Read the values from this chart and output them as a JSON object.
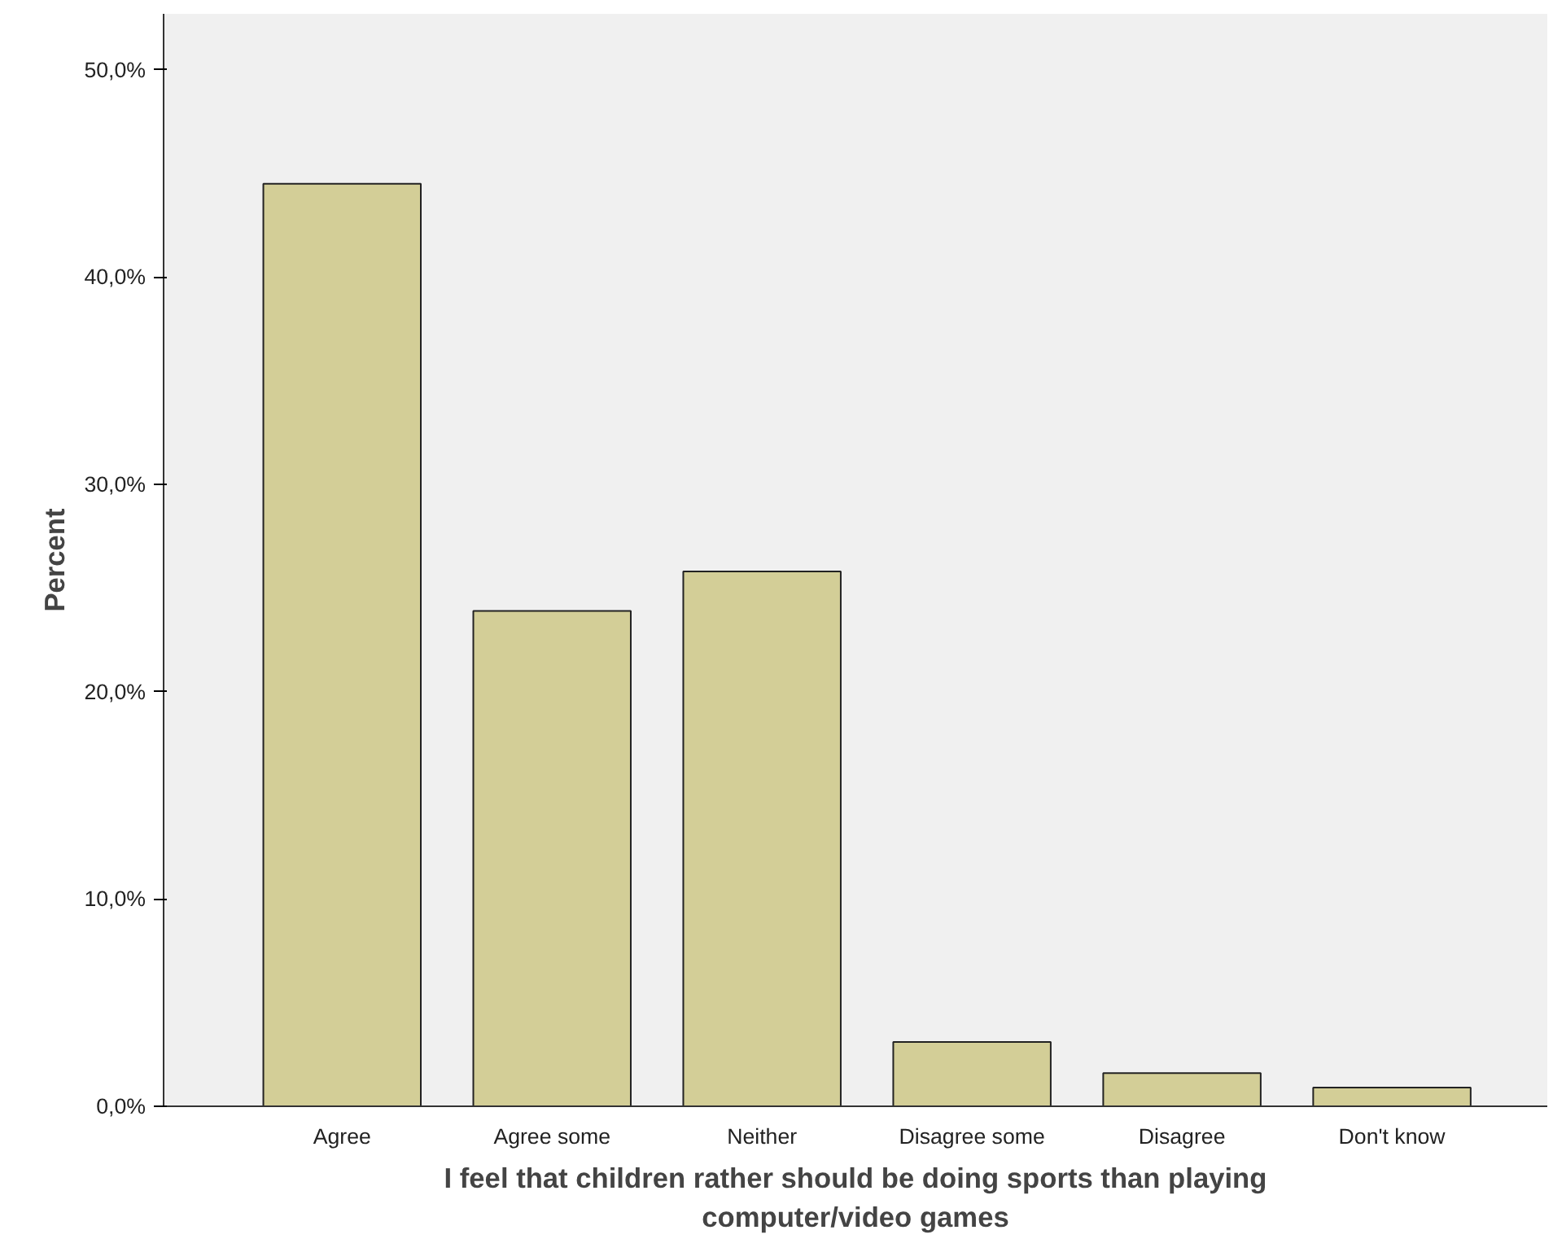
{
  "chart_data": {
    "type": "bar",
    "xlabel": "I feel that children rather should be doing sports than playing computer/video games",
    "ylabel": "Percent",
    "categories": [
      "Agree",
      "Agree some",
      "Neither",
      "Disagree some",
      "Disagree",
      "Don't know"
    ],
    "values": [
      44.5,
      23.9,
      25.8,
      3.1,
      1.6,
      0.9
    ],
    "color": "#d3ce97",
    "ylim": [
      0,
      52.7
    ],
    "yticks": [
      {
        "value": 0,
        "label": "0,0%"
      },
      {
        "value": 10,
        "label": "10,0%"
      },
      {
        "value": 20,
        "label": "20,0%"
      },
      {
        "value": 30,
        "label": "30,0%"
      },
      {
        "value": 40,
        "label": "40,0%"
      },
      {
        "value": 50,
        "label": "50,0%"
      }
    ],
    "grid": false
  }
}
